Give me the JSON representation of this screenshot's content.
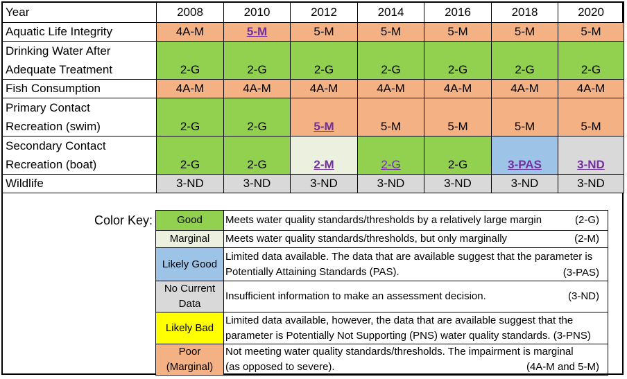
{
  "header": {
    "label": "Year",
    "years": [
      "2008",
      "2010",
      "2012",
      "2014",
      "2016",
      "2018",
      "2020"
    ]
  },
  "rows": [
    {
      "label_lines": [
        "Aquatic Life Integrity"
      ],
      "cells": [
        {
          "text": "4A-M",
          "color": "#f4b183"
        },
        {
          "text": "5-M",
          "color": "#f4b183",
          "style": "link"
        },
        {
          "text": "5-M",
          "color": "#f4b183"
        },
        {
          "text": "5-M",
          "color": "#f4b183"
        },
        {
          "text": "5-M",
          "color": "#f4b183"
        },
        {
          "text": "5-M",
          "color": "#f4b183"
        },
        {
          "text": "5-M",
          "color": "#f4b183"
        }
      ]
    },
    {
      "label_lines": [
        "Drinking Water After",
        "Adequate Treatment"
      ],
      "cells": [
        {
          "text": "2-G",
          "color": "#92d050"
        },
        {
          "text": "2-G",
          "color": "#92d050"
        },
        {
          "text": "2-G",
          "color": "#92d050"
        },
        {
          "text": "2-G",
          "color": "#92d050"
        },
        {
          "text": "2-G",
          "color": "#92d050"
        },
        {
          "text": "2-G",
          "color": "#92d050"
        },
        {
          "text": "2-G",
          "color": "#92d050"
        }
      ]
    },
    {
      "label_lines": [
        "Fish Consumption"
      ],
      "cells": [
        {
          "text": "4A-M",
          "color": "#f4b183"
        },
        {
          "text": "4A-M",
          "color": "#f4b183"
        },
        {
          "text": "4A-M",
          "color": "#f4b183"
        },
        {
          "text": "4A-M",
          "color": "#f4b183"
        },
        {
          "text": "4A-M",
          "color": "#f4b183"
        },
        {
          "text": "4A-M",
          "color": "#f4b183"
        },
        {
          "text": "4A-M",
          "color": "#f4b183"
        }
      ]
    },
    {
      "label_lines": [
        "Primary Contact",
        "Recreation (swim)"
      ],
      "cells": [
        {
          "text": "2-G",
          "color": "#92d050"
        },
        {
          "text": "2-G",
          "color": "#92d050"
        },
        {
          "text": "5-M",
          "color": "#f4b183",
          "style": "link"
        },
        {
          "text": "5-M",
          "color": "#f4b183"
        },
        {
          "text": "5-M",
          "color": "#f4b183"
        },
        {
          "text": "5-M",
          "color": "#f4b183"
        },
        {
          "text": "5-M",
          "color": "#f4b183"
        }
      ]
    },
    {
      "label_lines": [
        "Secondary Contact",
        "Recreation (boat)"
      ],
      "cells": [
        {
          "text": "2-G",
          "color": "#92d050"
        },
        {
          "text": "2-G",
          "color": "#92d050"
        },
        {
          "text": "2-M",
          "color": "#ebf1de",
          "style": "link"
        },
        {
          "text": "2-G",
          "color": "#92d050",
          "style": "link-plain"
        },
        {
          "text": "2-G",
          "color": "#92d050"
        },
        {
          "text": "3-PAS",
          "color": "#9dc3e6",
          "style": "link"
        },
        {
          "text": "3-ND",
          "color": "#d9d9d9",
          "style": "link"
        }
      ]
    },
    {
      "label_lines": [
        "Wildlife"
      ],
      "cells": [
        {
          "text": "3-ND",
          "color": "#d9d9d9"
        },
        {
          "text": "3-ND",
          "color": "#d9d9d9"
        },
        {
          "text": "3-ND",
          "color": "#d9d9d9"
        },
        {
          "text": "3-ND",
          "color": "#d9d9d9"
        },
        {
          "text": "3-ND",
          "color": "#d9d9d9"
        },
        {
          "text": "3-ND",
          "color": "#d9d9d9"
        },
        {
          "text": "3-ND",
          "color": "#d9d9d9"
        }
      ]
    }
  ],
  "legend": {
    "title": "Color Key:",
    "items": [
      {
        "swatch_lines": [
          "Good"
        ],
        "color": "#92d050",
        "desc_lines": [
          "Meets water quality standards/thresholds by a relatively large margin"
        ],
        "code": "(2-G)",
        "code_pos": "inline"
      },
      {
        "swatch_lines": [
          "Marginal"
        ],
        "color": "#ebf1de",
        "desc_lines": [
          "Meets water quality standards/thresholds, but only marginally"
        ],
        "code": "(2-M)",
        "code_pos": "inline"
      },
      {
        "swatch_lines": [
          "Likely Good"
        ],
        "color": "#9dc3e6",
        "desc_lines": [
          "Limited data available. The data that are available suggest that the parameter is",
          "Potentially Attaining Standards (PAS)."
        ],
        "code": "(3-PAS)",
        "code_pos": "bottom"
      },
      {
        "swatch_lines": [
          "No Current",
          "Data"
        ],
        "color": "#d9d9d9",
        "desc_lines": [
          "Insufficient information to make an assessment decision."
        ],
        "code": "(3-ND)",
        "code_pos": "inline"
      },
      {
        "swatch_lines": [
          "Likely Bad"
        ],
        "color": "#ffff00",
        "desc_lines": [
          "Limited data available, however, the data that are available suggest that the",
          "parameter is Potentially Not Supporting (PNS) water quality standards. (3-PNS)"
        ],
        "code": "",
        "code_pos": "none"
      },
      {
        "swatch_lines": [
          "Poor",
          "(Marginal)"
        ],
        "color": "#f4b183",
        "desc_lines": [
          "Not meeting water quality standards/thresholds. The impairment is marginal",
          "(as opposed to severe)."
        ],
        "code": "(4A-M and 5-M)",
        "code_pos": "bottom"
      }
    ]
  }
}
